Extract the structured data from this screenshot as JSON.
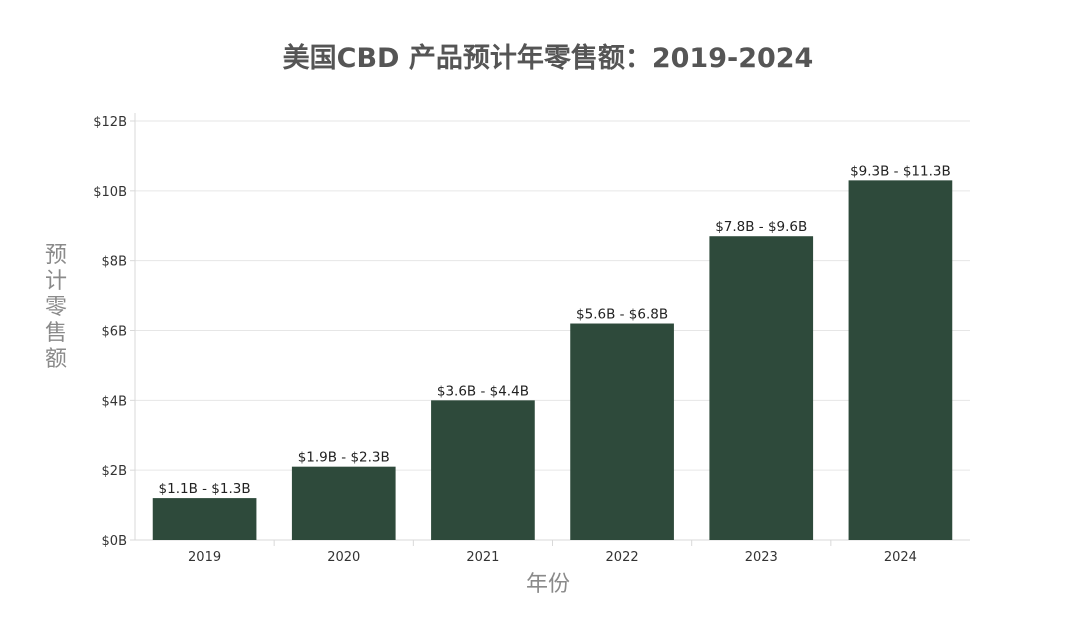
{
  "colors": {
    "bar": "#2e4a3b",
    "title": "#555555",
    "axis_title": "#8a8a8a"
  },
  "chart_data": {
    "type": "bar",
    "title": "美国CBD 产品预计年零售额：2019-2024",
    "xlabel": "年份",
    "ylabel": "预计零售额",
    "categories": [
      "2019",
      "2020",
      "2021",
      "2022",
      "2023",
      "2024"
    ],
    "values": [
      1.2,
      2.1,
      4.0,
      6.2,
      8.7,
      10.3
    ],
    "data_labels": [
      "$1.1B - $1.3B",
      "$1.9B - $2.3B",
      "$3.6B - $4.4B",
      "$5.6B - $6.8B",
      "$7.8B - $9.6B",
      "$9.3B - $11.3B"
    ],
    "ylim": [
      0,
      12
    ],
    "yticks": [
      0,
      2,
      4,
      6,
      8,
      10,
      12
    ],
    "ytick_labels": [
      "$0B",
      "$2B",
      "$4B",
      "$6B",
      "$8B",
      "$10B",
      "$12B"
    ],
    "grid": true,
    "legend": "none"
  }
}
